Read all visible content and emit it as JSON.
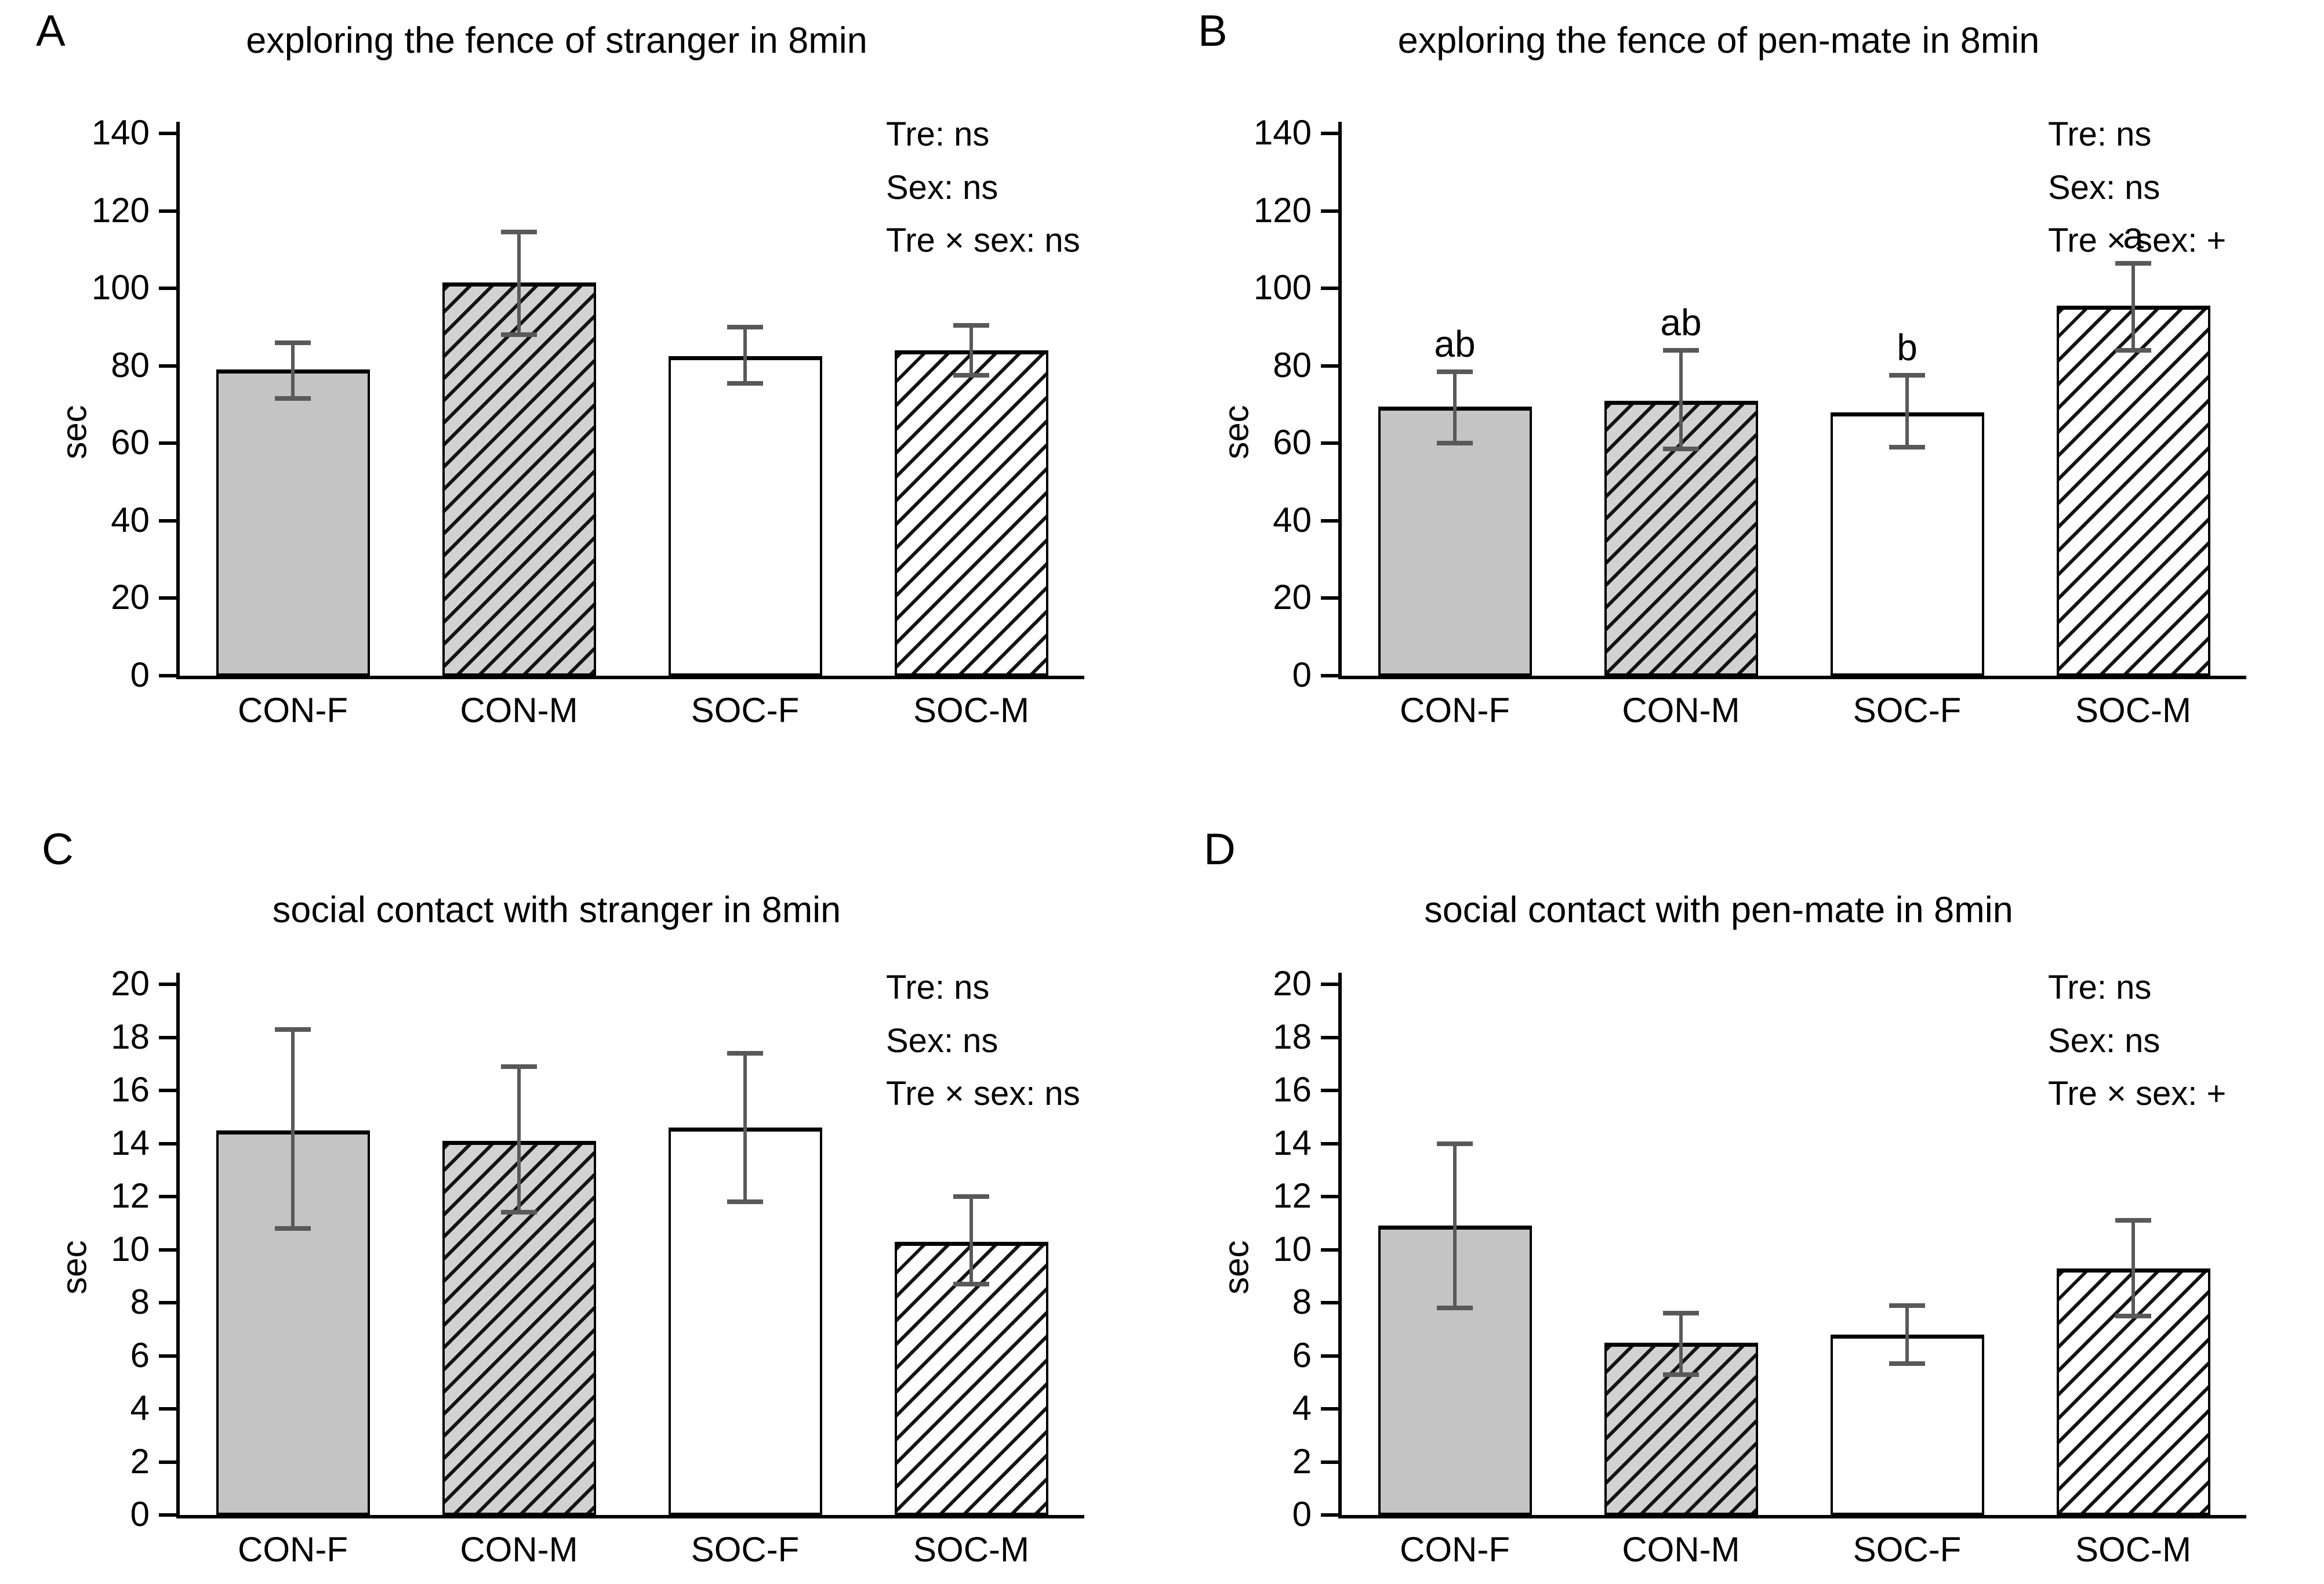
{
  "figure": {
    "background": "#ffffff"
  },
  "styles": {
    "axis_color": "#000000",
    "error_bar_color": "#595959",
    "solid_gray_fill": "#c4c4c4",
    "hatched_gray_fill": "#d2d2d2",
    "white_fill": "#ffffff",
    "hatch_line_color": "#141414"
  },
  "chart_data": [
    {
      "type": "bar",
      "panel_label": "A",
      "title": "exploring the fence of stranger in 8min",
      "ylabel": "sec",
      "xlabel": "",
      "ylim": [
        0,
        140
      ],
      "ytick_step": 20,
      "grid": false,
      "categories": [
        "CON-F",
        "CON-M",
        "SOC-F",
        "SOC-M"
      ],
      "values": [
        79,
        101.5,
        82.5,
        84
      ],
      "error_low": [
        71.5,
        88,
        75.5,
        77.5
      ],
      "error_high": [
        86,
        114.5,
        90,
        90.5
      ],
      "sig_letters": [
        "",
        "",
        "",
        ""
      ],
      "bar_styles": [
        "solid-gray",
        "hatched-gray",
        "solid-white",
        "hatched-white"
      ],
      "stats_lines": [
        "Tre: ns",
        "Sex: ns",
        "Tre × sex: ns"
      ]
    },
    {
      "type": "bar",
      "panel_label": "B",
      "title": "exploring the fence of pen-mate in 8min",
      "ylabel": "sec",
      "xlabel": "",
      "ylim": [
        0,
        140
      ],
      "ytick_step": 20,
      "grid": false,
      "categories": [
        "CON-F",
        "CON-M",
        "SOC-F",
        "SOC-M"
      ],
      "values": [
        69.5,
        71,
        68,
        95.5
      ],
      "error_low": [
        60,
        58.5,
        59,
        84
      ],
      "error_high": [
        78.5,
        84,
        77.5,
        106.5
      ],
      "sig_letters": [
        "ab",
        "ab",
        "b",
        "a"
      ],
      "bar_styles": [
        "solid-gray",
        "hatched-gray",
        "solid-white",
        "hatched-white"
      ],
      "stats_lines": [
        "Tre: ns",
        "Sex: ns",
        "Tre × sex: +"
      ]
    },
    {
      "type": "bar",
      "panel_label": "C",
      "title": "social contact with stranger in 8min",
      "ylabel": "sec",
      "xlabel": "",
      "ylim": [
        0,
        20
      ],
      "ytick_step": 2,
      "grid": false,
      "categories": [
        "CON-F",
        "CON-M",
        "SOC-F",
        "SOC-M"
      ],
      "values": [
        14.5,
        14.1,
        14.6,
        10.3
      ],
      "error_low": [
        10.8,
        11.4,
        11.8,
        8.7
      ],
      "error_high": [
        18.3,
        16.9,
        17.4,
        12.0
      ],
      "sig_letters": [
        "",
        "",
        "",
        ""
      ],
      "bar_styles": [
        "solid-gray",
        "hatched-gray",
        "solid-white",
        "hatched-white"
      ],
      "stats_lines": [
        "Tre: ns",
        "Sex: ns",
        "Tre × sex: ns"
      ]
    },
    {
      "type": "bar",
      "panel_label": "D",
      "title": "social contact with pen-mate in 8min",
      "ylabel": "sec",
      "xlabel": "",
      "ylim": [
        0,
        20
      ],
      "ytick_step": 2,
      "grid": false,
      "categories": [
        "CON-F",
        "CON-M",
        "SOC-F",
        "SOC-M"
      ],
      "values": [
        10.9,
        6.5,
        6.8,
        9.3
      ],
      "error_low": [
        7.8,
        5.3,
        5.7,
        7.5
      ],
      "error_high": [
        14.0,
        7.6,
        7.9,
        11.1
      ],
      "sig_letters": [
        "",
        "",
        "",
        ""
      ],
      "bar_styles": [
        "solid-gray",
        "hatched-gray",
        "solid-white",
        "hatched-white"
      ],
      "stats_lines": [
        "Tre: ns",
        "Sex: ns",
        "Tre × sex: +"
      ]
    }
  ]
}
